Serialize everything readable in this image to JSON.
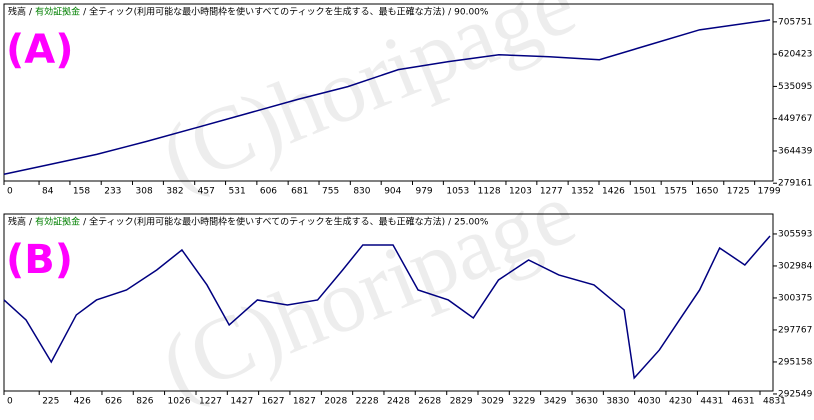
{
  "chart_data": [
    {
      "type": "line",
      "label": "(A)",
      "watermark": "(C)horipage",
      "header": [
        {
          "text": "残高",
          "color": "#000000"
        },
        {
          "text": "有効証拠金",
          "color": "#008000"
        },
        {
          "text": "全ティック(利用可能な最小時間枠を使いすべてのティックを生成する、最も正確な方法)",
          "color": "#000000"
        },
        {
          "text": "90.00%",
          "color": "#000000"
        }
      ],
      "separator": "/",
      "x": [
        0,
        101,
        222,
        342,
        463,
        583,
        703,
        824,
        945,
        1065,
        1186,
        1307,
        1427,
        1547,
        1667,
        1836
      ],
      "series": [
        {
          "color": "#000080",
          "values": [
            302900,
            326600,
            355500,
            389700,
            426600,
            463500,
            500400,
            534600,
            579400,
            600500,
            618900,
            613600,
            605700,
            645200,
            684700,
            710900
          ]
        }
      ],
      "xlim": [
        0,
        1843
      ],
      "ylim": [
        285000,
        753000
      ],
      "xticks": [
        0,
        84,
        158,
        233,
        308,
        382,
        457,
        531,
        606,
        681,
        755,
        830,
        904,
        979,
        1053,
        1128,
        1203,
        1277,
        1352,
        1426,
        1501,
        1575,
        1650,
        1725,
        1799
      ],
      "yticks": [
        279161,
        364439,
        449767,
        535095,
        620423,
        705751
      ]
    },
    {
      "type": "line",
      "label": "(B)",
      "watermark": "(C)horipage",
      "header": [
        {
          "text": "残高",
          "color": "#000000"
        },
        {
          "text": "有効証拠金",
          "color": "#008000"
        },
        {
          "text": "全ティック(利用可能な最小時間枠を使いすべてのティックを生成する、最も正確な方法)",
          "color": "#000000"
        },
        {
          "text": "25.00%",
          "color": "#000000"
        }
      ],
      "separator": "/",
      "x": [
        0,
        141,
        302,
        462,
        591,
        783,
        976,
        1137,
        1297,
        1439,
        1619,
        1811,
        2004,
        2164,
        2293,
        2486,
        2646,
        2839,
        2999,
        3160,
        3352,
        3545,
        3770,
        3963,
        4027,
        4188,
        4316,
        4445,
        4573,
        4734,
        4895
      ],
      "series": [
        {
          "color": "#000080",
          "values": [
            300212,
            298582,
            295157,
            298990,
            300212,
            301027,
            302658,
            304288,
            301435,
            298174,
            300212,
            299805,
            300212,
            302658,
            304696,
            304696,
            301027,
            300212,
            298745,
            301843,
            303473,
            302250,
            301435,
            299397,
            293852,
            296135,
            298582,
            301027,
            304452,
            303066,
            305430
          ]
        }
      ],
      "xlim": [
        0,
        4914
      ],
      "ylim": [
        292790,
        307220
      ],
      "xticks": [
        0,
        225,
        426,
        626,
        826,
        1026,
        1227,
        1427,
        1627,
        1827,
        2028,
        2228,
        2428,
        2628,
        2829,
        3029,
        3229,
        3429,
        3630,
        3830,
        4030,
        4230,
        4431,
        4631,
        4831
      ],
      "yticks": [
        292549,
        295158,
        297767,
        300375,
        302984,
        305593
      ]
    }
  ]
}
